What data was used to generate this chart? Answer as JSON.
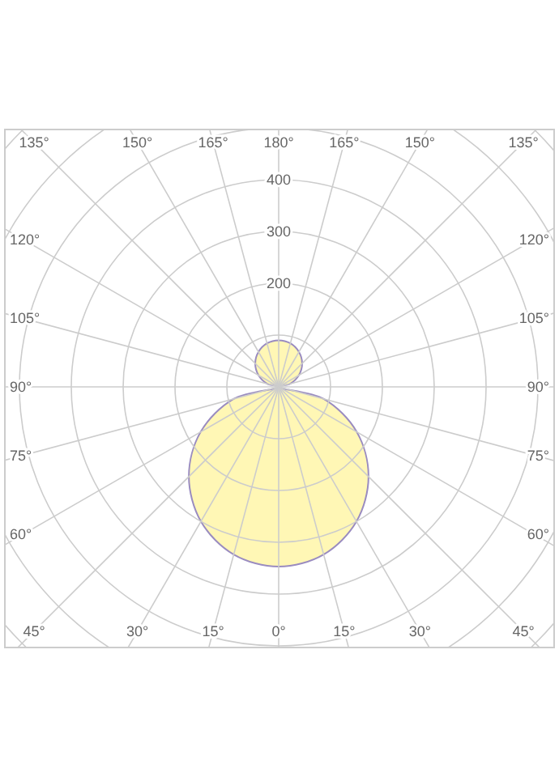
{
  "chart_data": {
    "type": "radar",
    "categories": [
      "180°",
      "165°",
      "150°",
      "135°",
      "120°",
      "105°",
      "90°",
      "75°",
      "60°",
      "45°",
      "30°",
      "15°",
      "0°",
      "15°",
      "30°",
      "45°",
      "60°",
      "75°",
      "90°",
      "105°",
      "120°",
      "135°",
      "150°",
      "165°"
    ],
    "series": [
      {
        "color": "#fff6a8",
        "values": [
          90,
          87,
          78,
          64,
          45,
          23,
          0,
          90,
          174,
          245,
          300,
          335,
          347,
          335,
          300,
          245,
          174,
          90,
          0,
          23,
          45,
          64,
          78,
          87
        ]
      }
    ],
    "ylim": [
      0,
      700
    ],
    "yticks": [
      200,
      300,
      400
    ],
    "grid": true
  }
}
